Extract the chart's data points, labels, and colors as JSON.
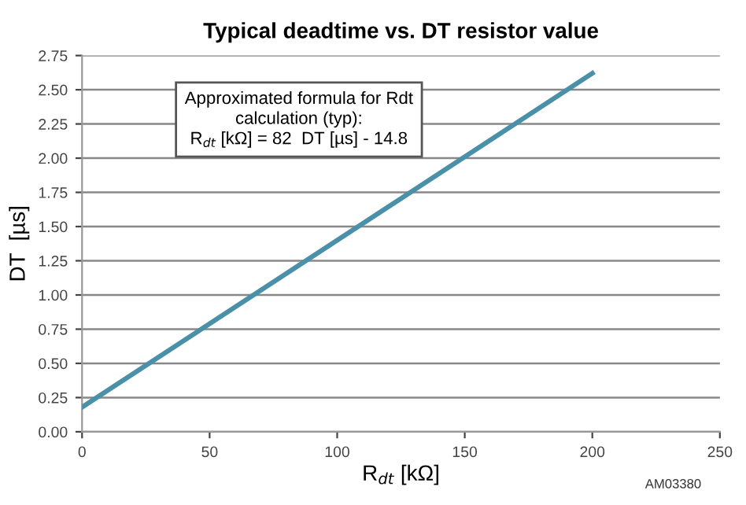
{
  "chart_data": {
    "type": "line",
    "title": "Typical deadtime vs. DT resistor value",
    "xlabel": "R$_{dt}$ [kΩ]",
    "ylabel": "DT  [µs]",
    "x": [
      0,
      200
    ],
    "series": [
      {
        "color": "#4a90a8",
        "values": [
          0.18,
          2.62
        ]
      }
    ],
    "xlim": [
      0,
      250
    ],
    "xticks": [
      0,
      50,
      100,
      150,
      200,
      250
    ],
    "ylim": [
      0,
      2.75
    ],
    "yticks": [
      {
        "value": 0,
        "label": "0.00"
      },
      {
        "value": 0.25,
        "label": "0.25"
      },
      {
        "value": 0.5,
        "label": "0.50"
      },
      {
        "value": 0.75,
        "label": "0.75"
      },
      {
        "value": 1,
        "label": "1.00"
      },
      {
        "value": 1.25,
        "label": "1.25"
      },
      {
        "value": 1.5,
        "label": "1.50"
      },
      {
        "value": 1.75,
        "label": "1.75"
      },
      {
        "value": 2,
        "label": "2.00"
      },
      {
        "value": 2.25,
        "label": "2.25"
      },
      {
        "value": 2.5,
        "label": "2.50"
      },
      {
        "value": 2.75,
        "label": "2.75"
      }
    ],
    "grid": "y",
    "legend": false,
    "marker": "none",
    "line_style": "solid",
    "annotations": [
      "Approximated formula for Rdt\ncalculation (typ):\nR$_{dt}$ [kΩ] = 82  DT [µs] - 14.8",
      "AM03380"
    ]
  }
}
